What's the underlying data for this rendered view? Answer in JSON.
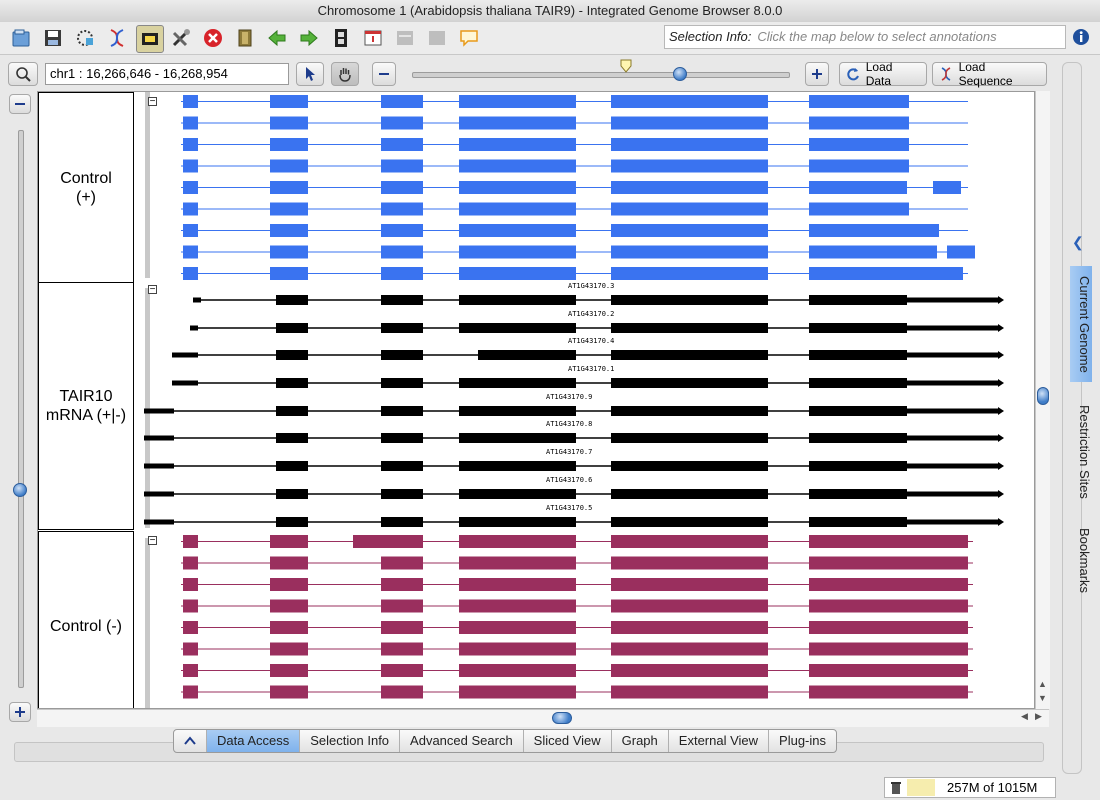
{
  "window": {
    "title": "Chromosome 1  (Arabidopsis thaliana TAIR9) - Integrated Genome Browser 8.0.0"
  },
  "toolbar": {
    "selection_label": "Selection Info:",
    "selection_placeholder": "Click the map below to select annotations"
  },
  "nav": {
    "location": "chr1 : 16,266,646 - 16,268,954",
    "load_data": "Load Data",
    "load_sequence": "Load Sequence",
    "zoom_fraction": 0.72
  },
  "tracks": [
    {
      "label": "Control\n(+)",
      "color": "#3a73f0"
    },
    {
      "label": "TAIR10\nmRNA (+|-)",
      "color": "#000000"
    },
    {
      "label": "Control (-)",
      "color": "#9a2f5e"
    }
  ],
  "transcripts": [
    "AT1G43170.3",
    "AT1G43170.2",
    "AT1G43170.4",
    "AT1G43170.1",
    "AT1G43170.9",
    "AT1G43170.8",
    "AT1G43170.7",
    "AT1G43170.6",
    "AT1G43170.5"
  ],
  "tabs": [
    "Data Access",
    "Selection Info",
    "Advanced Search",
    "Sliced View",
    "Graph",
    "External View",
    "Plug-ins"
  ],
  "active_tab": "Data Access",
  "side_tabs": [
    "Current Genome",
    "Restriction Sites",
    "Bookmarks"
  ],
  "status": {
    "memory": "257M of 1015M"
  }
}
